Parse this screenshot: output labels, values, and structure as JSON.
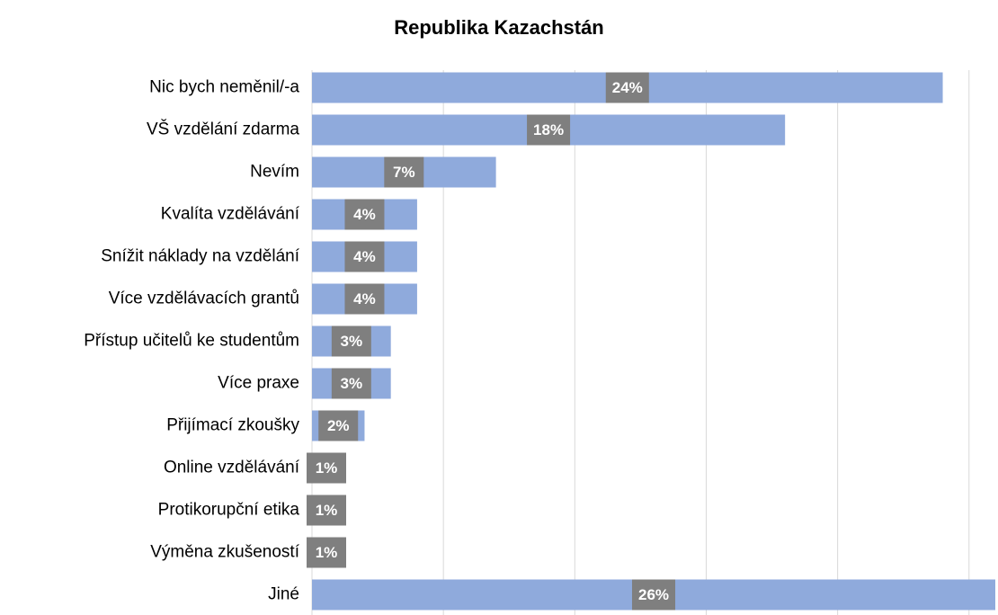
{
  "chart_data": {
    "type": "bar",
    "orientation": "horizontal",
    "title": "Republika Kazachstán",
    "categories": [
      "Nic bych neměnil/-a",
      "VŠ vzdělání zdarma",
      "Nevím",
      "Kvalíta vzdělávání",
      "Snížit náklady na vzdělání",
      "Více vzdělávacích grantů",
      "Přístup učitelů ke studentům",
      "Více praxe",
      "Přijímací zkoušky",
      "Online vzdělávání",
      "Protikorupční etika",
      "Výměna zkušeností",
      "Jiné"
    ],
    "values": [
      24,
      18,
      7,
      4,
      4,
      4,
      3,
      3,
      2,
      1,
      1,
      1,
      26
    ],
    "value_labels": [
      "24%",
      "18%",
      "7%",
      "4%",
      "4%",
      "4%",
      "3%",
      "3%",
      "2%",
      "1%",
      "1%",
      "1%",
      "26%"
    ],
    "color": "#8faadc",
    "label_box_color": "#7f7f7f",
    "xlim": [
      0,
      26
    ],
    "xticks": [
      0,
      5,
      10,
      15,
      20,
      25
    ],
    "grid": true
  }
}
